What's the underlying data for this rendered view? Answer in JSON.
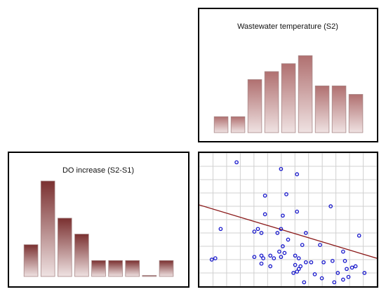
{
  "chart_data": [
    {
      "type": "bar",
      "title": "Wastewater temperature (S2)",
      "values": [
        3,
        3,
        10,
        11.5,
        13,
        14.5,
        8.8,
        8.8,
        7.2
      ],
      "ylim": [
        0,
        16
      ],
      "bar_color_top": "#b07070",
      "bar_color_bottom": "#efe2e2"
    },
    {
      "type": "bar",
      "title": "DO increase (S2-S1)",
      "values": [
        9,
        27,
        16.5,
        12,
        4.5,
        4.5,
        4.5,
        0.3,
        4.5
      ],
      "ylim": [
        0,
        28
      ],
      "bar_color_top": "#7a3030",
      "bar_color_bottom": "#efe2e2"
    },
    {
      "type": "scatter",
      "title": "",
      "grid": true,
      "xlim": [
        0,
        10
      ],
      "ylim": [
        0,
        10
      ],
      "points": [
        [
          2.1,
          9.3
        ],
        [
          4.6,
          8.8
        ],
        [
          5.5,
          8.4
        ],
        [
          3.7,
          6.8
        ],
        [
          4.9,
          6.9
        ],
        [
          7.4,
          6.0
        ],
        [
          5.5,
          5.6
        ],
        [
          3.7,
          5.4
        ],
        [
          4.7,
          5.3
        ],
        [
          1.2,
          4.3
        ],
        [
          3.3,
          4.3
        ],
        [
          3.5,
          4.0
        ],
        [
          3.1,
          4.1
        ],
        [
          4.6,
          4.3
        ],
        [
          4.4,
          4.0
        ],
        [
          6.0,
          4.0
        ],
        [
          5.0,
          3.5
        ],
        [
          9.0,
          3.8
        ],
        [
          4.7,
          3.0
        ],
        [
          5.8,
          3.1
        ],
        [
          6.8,
          3.1
        ],
        [
          4.5,
          2.6
        ],
        [
          3.5,
          2.3
        ],
        [
          4.0,
          2.3
        ],
        [
          4.8,
          2.5
        ],
        [
          5.4,
          2.3
        ],
        [
          8.1,
          2.6
        ],
        [
          0.9,
          2.1
        ],
        [
          0.7,
          2.0
        ],
        [
          3.1,
          2.2
        ],
        [
          3.6,
          2.1
        ],
        [
          4.2,
          2.1
        ],
        [
          4.6,
          2.2
        ],
        [
          5.6,
          2.1
        ],
        [
          6.0,
          1.8
        ],
        [
          6.3,
          1.8
        ],
        [
          7.0,
          1.8
        ],
        [
          7.5,
          1.9
        ],
        [
          8.2,
          1.9
        ],
        [
          8.8,
          1.5
        ],
        [
          5.4,
          1.6
        ],
        [
          5.6,
          1.3
        ],
        [
          3.5,
          1.7
        ],
        [
          4.0,
          1.5
        ],
        [
          5.3,
          1.0
        ],
        [
          5.5,
          1.1
        ],
        [
          8.3,
          1.3
        ],
        [
          8.6,
          1.4
        ],
        [
          7.8,
          1.0
        ],
        [
          6.5,
          0.9
        ],
        [
          8.4,
          0.7
        ],
        [
          8.1,
          0.5
        ],
        [
          7.6,
          0.3
        ],
        [
          6.9,
          0.6
        ],
        [
          5.9,
          0.3
        ],
        [
          5.7,
          1.5
        ],
        [
          9.3,
          1.0
        ]
      ],
      "trendline": {
        "x": [
          0,
          10
        ],
        "y": [
          6.1,
          2.1
        ]
      },
      "point_color": "#1a1acc",
      "line_color": "#8b1a1a"
    }
  ]
}
